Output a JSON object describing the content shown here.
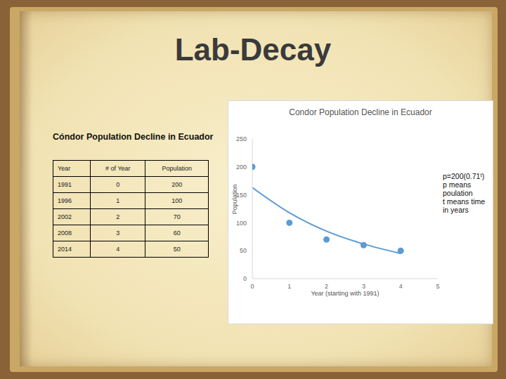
{
  "title": "Lab-Decay",
  "table": {
    "title": "Cóndor Population Decline in Ecuador",
    "columns": [
      "Year",
      "# of Year",
      "Population"
    ],
    "rows": [
      [
        1991,
        0,
        200
      ],
      [
        1996,
        1,
        100
      ],
      [
        2002,
        2,
        70
      ],
      [
        2008,
        3,
        60
      ],
      [
        2014,
        4,
        50
      ]
    ]
  },
  "chart_data": {
    "type": "scatter",
    "title": "Condor Population Decline in Ecuador",
    "x_label": "Year (starting with 1991)",
    "y_label": "Population",
    "xlim": [
      0,
      5
    ],
    "ylim": [
      0,
      250
    ],
    "xticks": [
      0,
      1,
      2,
      3,
      4,
      5
    ],
    "yticks": [
      0,
      50,
      100,
      150,
      200,
      250
    ],
    "grid": false,
    "series": [
      {
        "color": "#5b9bd5",
        "marker": "circle",
        "x": [
          0,
          1,
          2,
          3,
          4
        ],
        "values": [
          200,
          100,
          70,
          60,
          50
        ]
      },
      {
        "type": "line",
        "color": "#5b9bd5",
        "line_style": "solid",
        "x": [
          0,
          1,
          2,
          3,
          4
        ],
        "values": [
          163,
          118,
          85,
          62,
          45
        ]
      }
    ],
    "annotations": [
      "p=200(0.71ᵗ)",
      "p means poulation",
      "t means time in years"
    ]
  }
}
